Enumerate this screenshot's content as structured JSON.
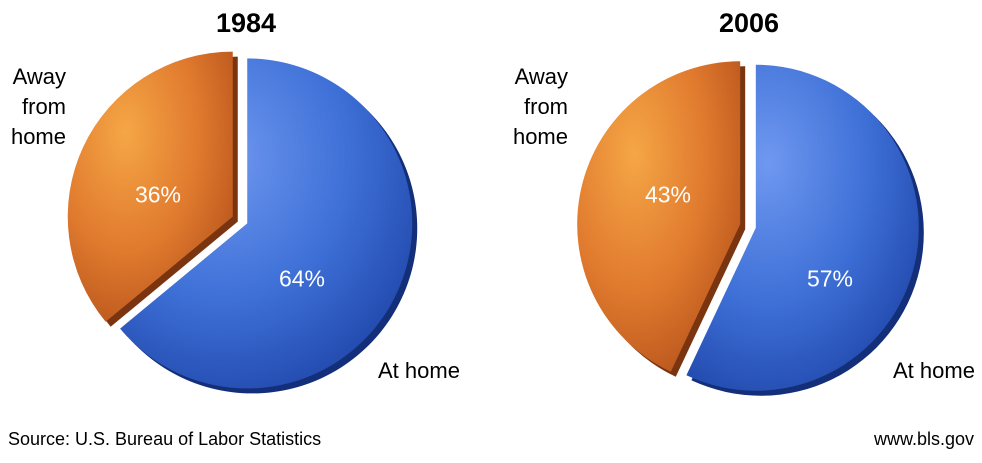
{
  "chart_data": [
    {
      "type": "pie",
      "title": "1984",
      "slices": [
        {
          "label": "At home",
          "value": 64,
          "value_label": "64%",
          "color": "#3d6fd6"
        },
        {
          "label": "Away from home",
          "value": 36,
          "value_label": "36%",
          "color": "#e07a2e"
        }
      ],
      "slice_labels": {
        "away": [
          "Away",
          "from",
          "home"
        ],
        "home": "At home"
      }
    },
    {
      "type": "pie",
      "title": "2006",
      "slices": [
        {
          "label": "At home",
          "value": 57,
          "value_label": "57%",
          "color": "#3d6fd6"
        },
        {
          "label": "Away from home",
          "value": 43,
          "value_label": "43%",
          "color": "#e07a2e"
        }
      ],
      "slice_labels": {
        "away": [
          "Away",
          "from",
          "home"
        ],
        "home": "At home"
      }
    }
  ],
  "footer": {
    "source": "Source: U.S. Bureau of Labor Statistics",
    "url": "www.bls.gov"
  }
}
